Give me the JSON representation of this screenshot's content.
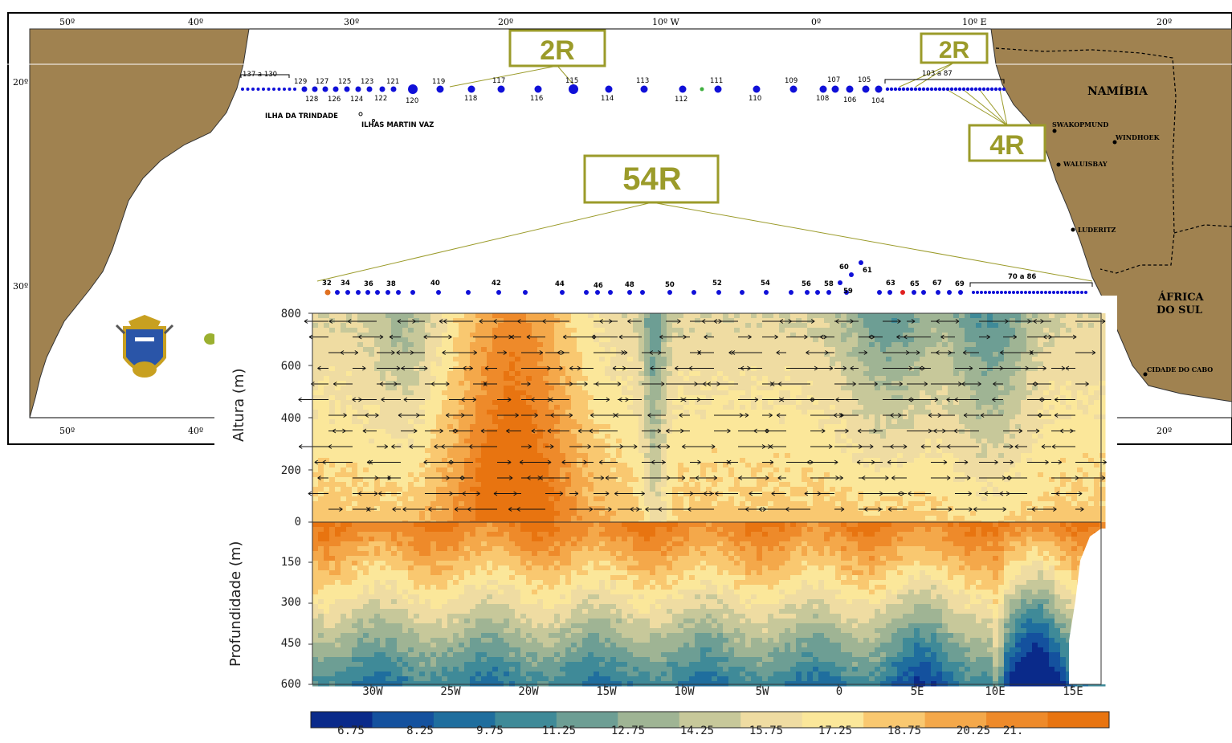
{
  "map": {
    "lon_labels_top": [
      "50º",
      "40º",
      "30º",
      "20º",
      "10º W",
      "0º",
      "10º E",
      "20º"
    ],
    "lon_labels_bottom": [
      "50º",
      "40º",
      "20º"
    ],
    "lat_labels": [
      "20º",
      "30º"
    ],
    "callouts": [
      "2R",
      "2R",
      "4R",
      "54R"
    ],
    "places": {
      "namibia": "NAMÍBIA",
      "africa_sul_1": "ÁFRICA",
      "africa_sul_2": "DO SUL",
      "swakopmund": "SWAKOPMUND",
      "windhoek": "WINDHOEK",
      "walvis": "WALUISBAY",
      "luderitz": "LUDERITZ",
      "cidade_cabo": "CIDADE DO CABO",
      "trindade": "ILHA DA TRINDADE",
      "martin_vaz": "ILHAS MARTIN VAZ"
    },
    "station_labels_top_row": [
      "137 a 130",
      "129",
      "127",
      "125",
      "123",
      "121",
      "119",
      "117",
      "115",
      "113",
      "111",
      "109",
      "107",
      "105",
      "103 a 87"
    ],
    "station_labels_top_below": [
      "128",
      "126",
      "124",
      "122",
      "120",
      "118",
      "116",
      "114",
      "112",
      "110",
      "108",
      "106",
      "104"
    ],
    "station_labels_second_row": [
      "32",
      "34",
      "36",
      "38",
      "40",
      "42",
      "44",
      "46",
      "48",
      "50",
      "52",
      "54",
      "56",
      "58",
      "60",
      "61",
      "59",
      "63",
      "65",
      "67",
      "69",
      "70 a 86"
    ],
    "colors": {
      "land": "#a0824f",
      "callout": "#9b9b2a",
      "station": "#1010d8",
      "station_alt_orange": "#e07020",
      "station_alt_red": "#e02020",
      "station_alt_green": "#40b040"
    }
  },
  "chart_data": {
    "type": "heatmap",
    "title": "",
    "x_ticks": [
      "30W",
      "25W",
      "20W",
      "15W",
      "10W",
      "5W",
      "0",
      "5E",
      "10E",
      "15E"
    ],
    "upper_panel": {
      "ylabel": "Altura (m)",
      "y_ticks": [
        "800",
        "600",
        "400",
        "200",
        "0"
      ],
      "ylim": [
        0,
        800
      ]
    },
    "lower_panel": {
      "ylabel": "Profundidade (m)",
      "y_ticks": [
        "150",
        "300",
        "450",
        "600"
      ],
      "ylim": [
        0,
        600
      ]
    },
    "colorbar": {
      "labels": [
        "6.75",
        "8.25",
        "9.75",
        "11.25",
        "12.75",
        "14.25",
        "15.75",
        "17.25",
        "18.75",
        "20.25",
        "21."
      ],
      "colors": [
        "#0a2a8a",
        "#14519e",
        "#1f6e9e",
        "#3f8a98",
        "#6d9e94",
        "#9fb494",
        "#c7c89a",
        "#efdca2",
        "#fbe79a",
        "#f9c870",
        "#f4a84a",
        "#ee8a2a",
        "#e87410"
      ]
    }
  }
}
